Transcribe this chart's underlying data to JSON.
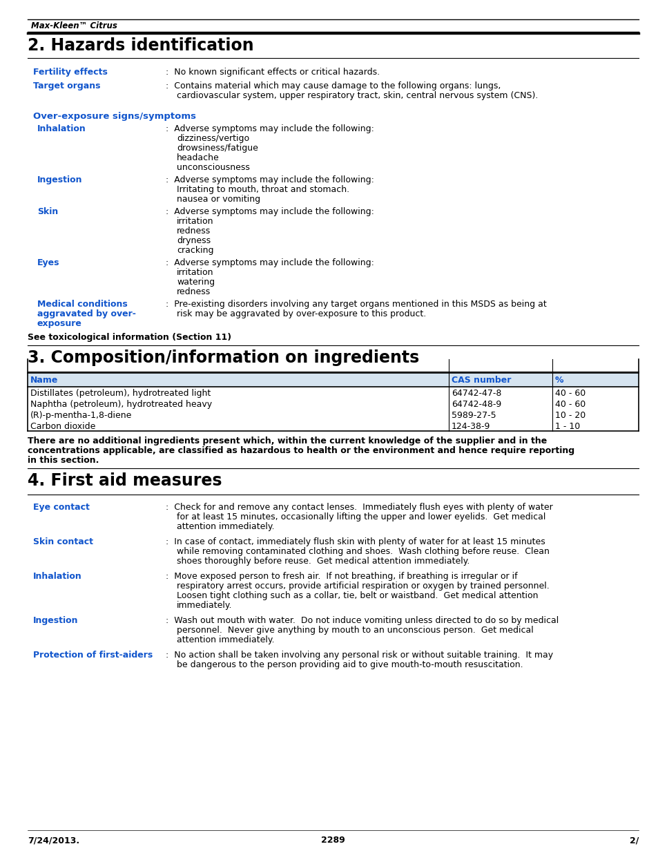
{
  "page_bg": "#ffffff",
  "blue_color": "#1F3864",
  "black_color": "#000000",
  "header_italic": "Max-Kleen™ Citrus",
  "section2_title": "2. Hazards identification",
  "section3_title": "3. Composition/information on ingredients",
  "section4_title": "4. First aid measures",
  "footer_left": "7/24/2013.",
  "footer_center": "2289",
  "footer_right": "2/",
  "overexposure_heading": "Over-exposure signs/symptoms",
  "see_tox": "See toxicological information (Section 11)",
  "table_headers": [
    "Name",
    "CAS number",
    "%"
  ],
  "table_rows": [
    [
      "Distillates (petroleum), hydrotreated light",
      "64742-47-8",
      "40 - 60"
    ],
    [
      "Naphtha (petroleum), hydrotreated heavy",
      "64742-48-9",
      "40 - 60"
    ],
    [
      "(R)-p-mentha-1,8-diene",
      "5989-27-5",
      "10 - 20"
    ],
    [
      "Carbon dioxide",
      "124-38-9",
      "1 - 10"
    ]
  ],
  "bold_note_lines": [
    "There are no additional ingredients present which, within the current knowledge of the supplier and in the",
    "concentrations applicable, are classified as hazardous to health or the environment and hence require reporting",
    "in this section."
  ]
}
